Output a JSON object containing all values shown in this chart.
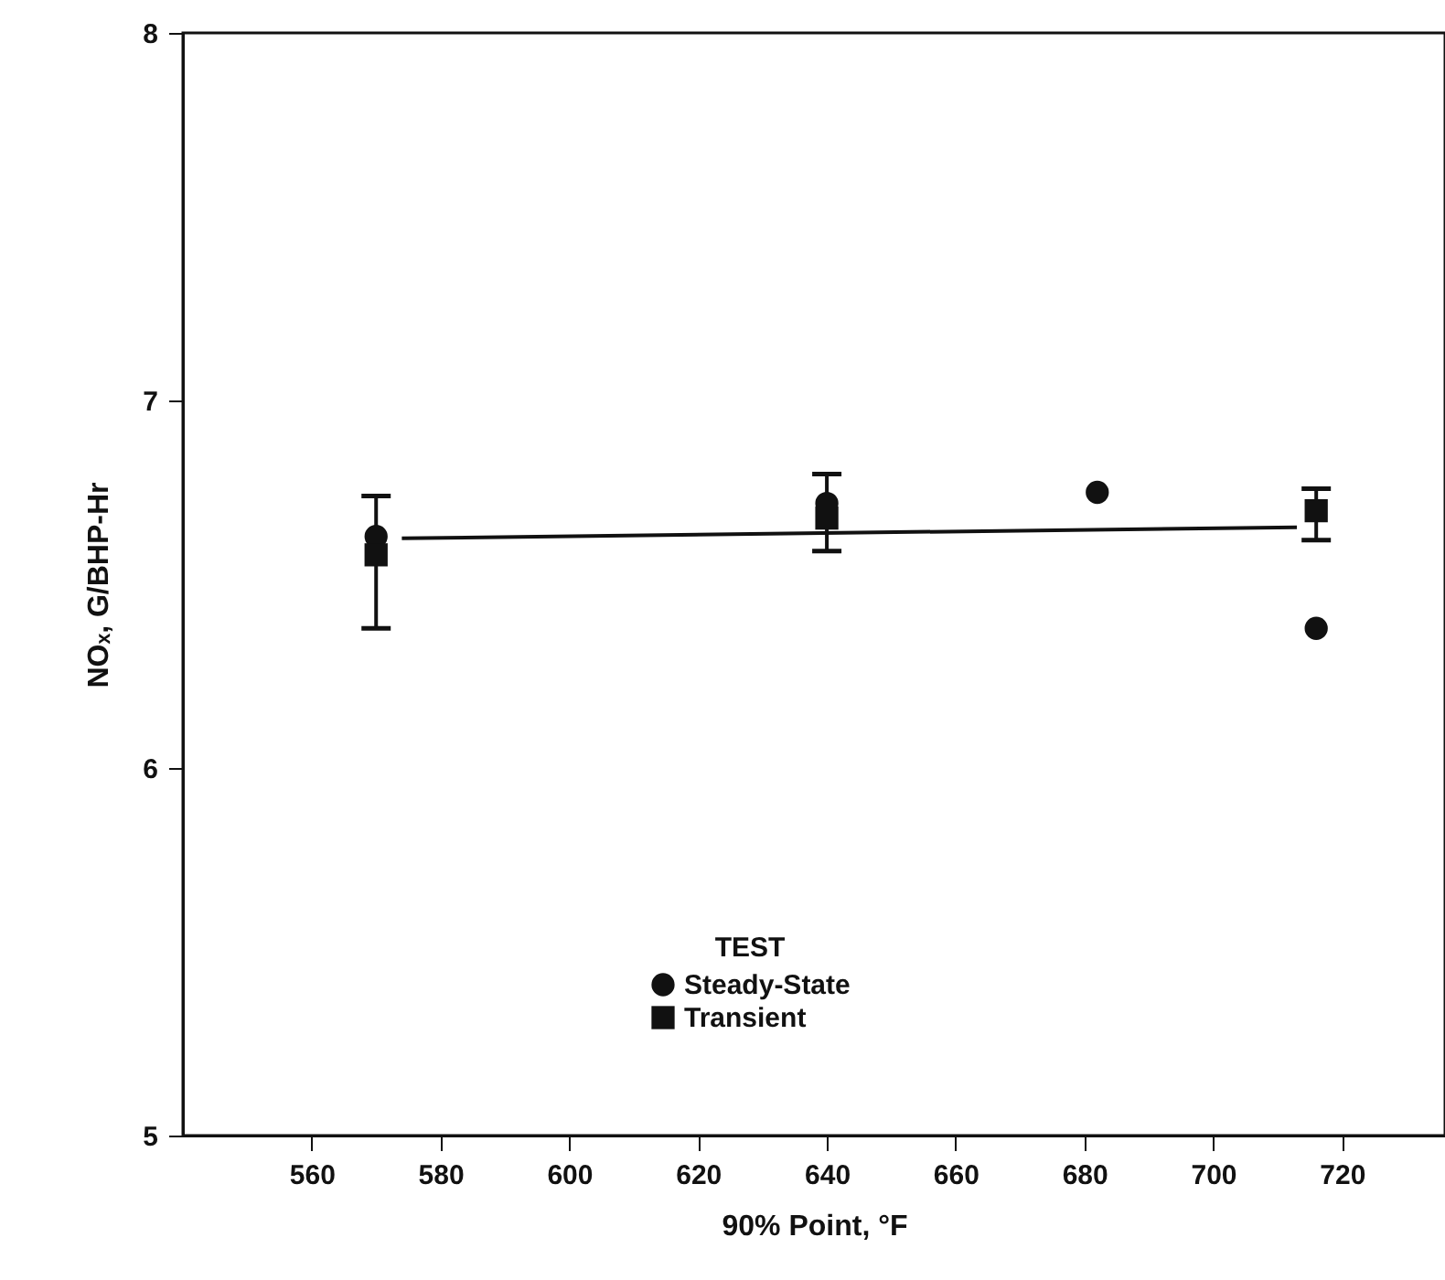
{
  "chart_data": {
    "type": "scatter",
    "xlabel": "90% Point, °F",
    "ylabel": "NOₓ, G/BHP-Hr",
    "legend_title": "TEST",
    "legend": "bottom",
    "grid": false,
    "xlim": [
      540,
      736
    ],
    "xticks": [
      560,
      580,
      600,
      620,
      640,
      660,
      680,
      700,
      720
    ],
    "ylim": [
      5,
      8
    ],
    "yticks": [
      5,
      6,
      7,
      8
    ],
    "series": [
      {
        "name": "Steady-State",
        "type": "scatter",
        "marker": "circle",
        "color": "#111111",
        "x": [
          570,
          640,
          682,
          716
        ],
        "values": [
          6.63,
          6.72,
          6.75,
          6.38
        ]
      },
      {
        "name": "Transient",
        "type": "scatter",
        "marker": "square",
        "color": "#111111",
        "x": [
          570,
          640,
          716
        ],
        "values": [
          6.58,
          6.68,
          6.7
        ],
        "errors": [
          [
            6.38,
            6.74
          ],
          [
            6.59,
            6.8
          ],
          [
            6.62,
            6.76
          ]
        ]
      },
      {
        "type": "line",
        "marker": "none",
        "line_style": "solid",
        "color": "#111111",
        "x": [
          574,
          713
        ],
        "values": [
          6.625,
          6.655
        ]
      }
    ]
  }
}
